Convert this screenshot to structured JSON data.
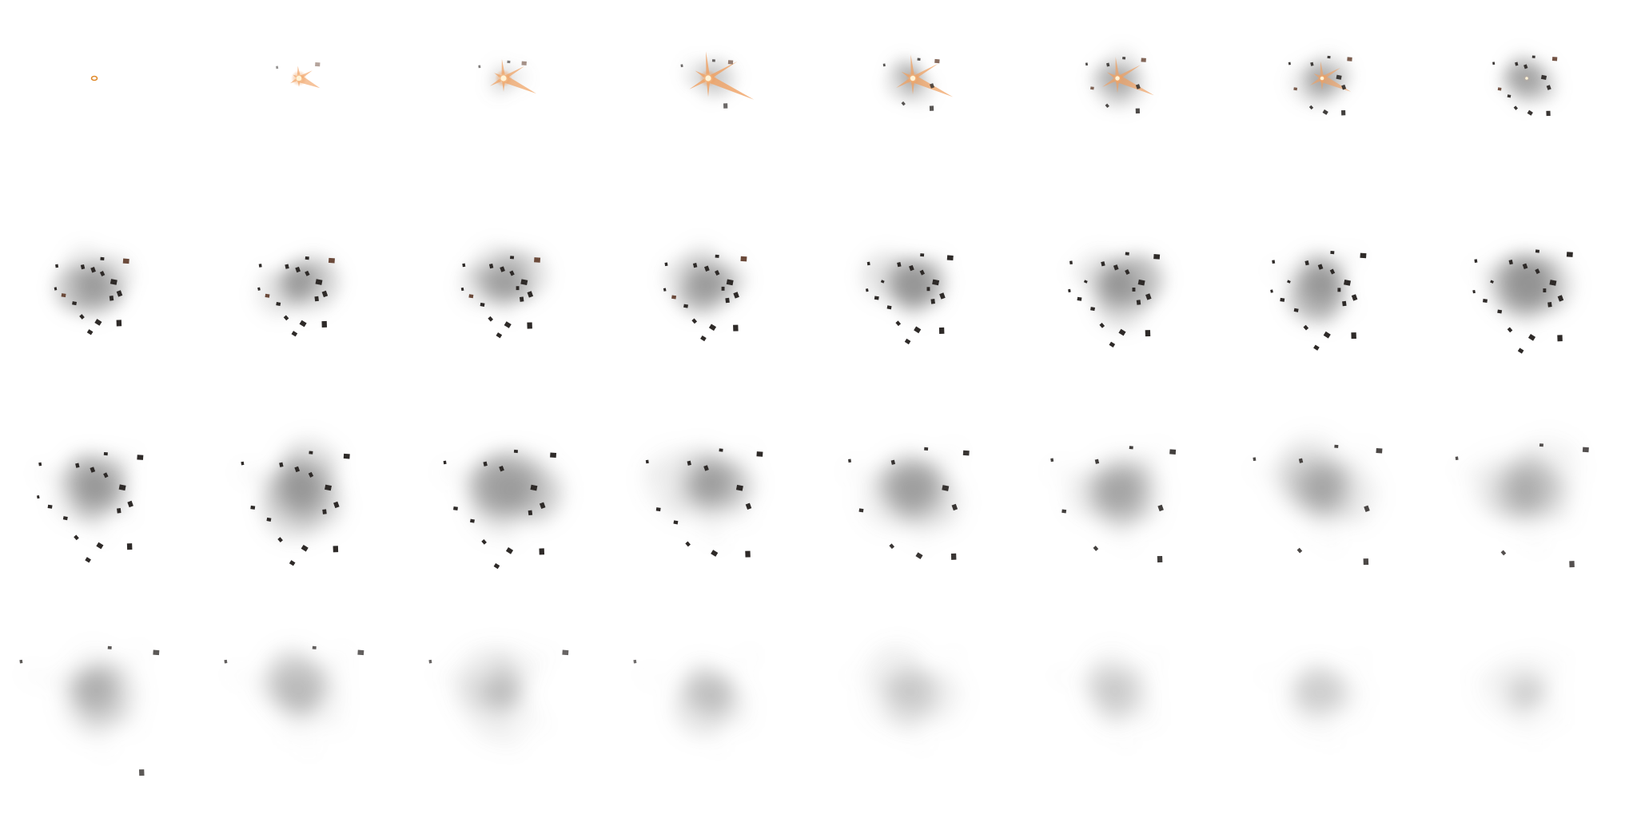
{
  "sprite_sheet": {
    "columns": 8,
    "rows": 4,
    "frame_count": 32,
    "effect": "explosion",
    "colors": {
      "background": "#ffffff",
      "flash_core": "#fff3d6",
      "flash_ring": "#e08a2a",
      "spark": "#f0a060",
      "spark_edge": "#d9742a",
      "smoke": "#9a9a9a",
      "debris": "#2e2a28",
      "debris_hot": "#6b4a3a"
    },
    "frames": [
      {
        "index": 0,
        "smoke": 0.0,
        "smoke_size": 0.0,
        "flash": 0.1,
        "sparks": 0.0,
        "debris": 0,
        "spread": 0.0
      },
      {
        "index": 1,
        "smoke": 0.0,
        "smoke_size": 0.05,
        "flash": 0.6,
        "sparks": 0.45,
        "debris": 2,
        "spread": 0.08
      },
      {
        "index": 2,
        "smoke": 0.1,
        "smoke_size": 0.08,
        "flash": 0.7,
        "sparks": 0.65,
        "debris": 3,
        "spread": 0.12
      },
      {
        "index": 3,
        "smoke": 0.2,
        "smoke_size": 0.12,
        "flash": 0.7,
        "sparks": 0.85,
        "debris": 4,
        "spread": 0.16
      },
      {
        "index": 4,
        "smoke": 0.3,
        "smoke_size": 0.18,
        "flash": 0.55,
        "sparks": 0.7,
        "debris": 6,
        "spread": 0.2
      },
      {
        "index": 5,
        "smoke": 0.35,
        "smoke_size": 0.22,
        "flash": 0.4,
        "sparks": 0.6,
        "debris": 8,
        "spread": 0.24
      },
      {
        "index": 6,
        "smoke": 0.4,
        "smoke_size": 0.26,
        "flash": 0.25,
        "sparks": 0.45,
        "debris": 10,
        "spread": 0.27
      },
      {
        "index": 7,
        "smoke": 0.45,
        "smoke_size": 0.28,
        "flash": 0.1,
        "sparks": 0.0,
        "debris": 12,
        "spread": 0.28
      },
      {
        "index": 8,
        "smoke": 0.5,
        "smoke_size": 0.32,
        "flash": 0.0,
        "sparks": 0.0,
        "debris": 16,
        "spread": 0.36
      },
      {
        "index": 9,
        "smoke": 0.52,
        "smoke_size": 0.34,
        "flash": 0.0,
        "sparks": 0.0,
        "debris": 16,
        "spread": 0.38
      },
      {
        "index": 10,
        "smoke": 0.55,
        "smoke_size": 0.36,
        "flash": 0.0,
        "sparks": 0.0,
        "debris": 17,
        "spread": 0.4
      },
      {
        "index": 11,
        "smoke": 0.58,
        "smoke_size": 0.38,
        "flash": 0.0,
        "sparks": 0.0,
        "debris": 17,
        "spread": 0.44
      },
      {
        "index": 12,
        "smoke": 0.6,
        "smoke_size": 0.4,
        "flash": 0.0,
        "sparks": 0.0,
        "debris": 18,
        "spread": 0.48
      },
      {
        "index": 13,
        "smoke": 0.62,
        "smoke_size": 0.42,
        "flash": 0.0,
        "sparks": 0.0,
        "debris": 18,
        "spread": 0.52
      },
      {
        "index": 14,
        "smoke": 0.64,
        "smoke_size": 0.44,
        "flash": 0.0,
        "sparks": 0.0,
        "debris": 18,
        "spread": 0.56
      },
      {
        "index": 15,
        "smoke": 0.66,
        "smoke_size": 0.46,
        "flash": 0.0,
        "sparks": 0.0,
        "debris": 18,
        "spread": 0.6
      },
      {
        "index": 16,
        "smoke": 0.62,
        "smoke_size": 0.5,
        "flash": 0.0,
        "sparks": 0.0,
        "debris": 16,
        "spread": 0.66
      },
      {
        "index": 17,
        "smoke": 0.58,
        "smoke_size": 0.52,
        "flash": 0.0,
        "sparks": 0.0,
        "debris": 15,
        "spread": 0.7
      },
      {
        "index": 18,
        "smoke": 0.54,
        "smoke_size": 0.54,
        "flash": 0.0,
        "sparks": 0.0,
        "debris": 14,
        "spread": 0.74
      },
      {
        "index": 19,
        "smoke": 0.5,
        "smoke_size": 0.55,
        "flash": 0.0,
        "sparks": 0.0,
        "debris": 12,
        "spread": 0.78
      },
      {
        "index": 20,
        "smoke": 0.45,
        "smoke_size": 0.56,
        "flash": 0.0,
        "sparks": 0.0,
        "debris": 10,
        "spread": 0.82
      },
      {
        "index": 21,
        "smoke": 0.4,
        "smoke_size": 0.56,
        "flash": 0.0,
        "sparks": 0.0,
        "debris": 8,
        "spread": 0.86
      },
      {
        "index": 22,
        "smoke": 0.36,
        "smoke_size": 0.57,
        "flash": 0.0,
        "sparks": 0.0,
        "debris": 7,
        "spread": 0.9
      },
      {
        "index": 23,
        "smoke": 0.32,
        "smoke_size": 0.57,
        "flash": 0.0,
        "sparks": 0.0,
        "debris": 5,
        "spread": 0.94
      },
      {
        "index": 24,
        "smoke": 0.28,
        "smoke_size": 0.56,
        "flash": 0.0,
        "sparks": 0.0,
        "debris": 4,
        "spread": 1.0
      },
      {
        "index": 25,
        "smoke": 0.25,
        "smoke_size": 0.55,
        "flash": 0.0,
        "sparks": 0.0,
        "debris": 3,
        "spread": 1.0
      },
      {
        "index": 26,
        "smoke": 0.22,
        "smoke_size": 0.54,
        "flash": 0.0,
        "sparks": 0.0,
        "debris": 2,
        "spread": 1.0
      },
      {
        "index": 27,
        "smoke": 0.19,
        "smoke_size": 0.52,
        "flash": 0.0,
        "sparks": 0.0,
        "debris": 1,
        "spread": 1.0
      },
      {
        "index": 28,
        "smoke": 0.17,
        "smoke_size": 0.5,
        "flash": 0.0,
        "sparks": 0.0,
        "debris": 0,
        "spread": 1.0
      },
      {
        "index": 29,
        "smoke": 0.15,
        "smoke_size": 0.48,
        "flash": 0.0,
        "sparks": 0.0,
        "debris": 0,
        "spread": 1.0
      },
      {
        "index": 30,
        "smoke": 0.13,
        "smoke_size": 0.46,
        "flash": 0.0,
        "sparks": 0.0,
        "debris": 0,
        "spread": 1.0
      },
      {
        "index": 31,
        "smoke": 0.11,
        "smoke_size": 0.44,
        "flash": 0.0,
        "sparks": 0.0,
        "debris": 0,
        "spread": 1.0
      }
    ]
  }
}
